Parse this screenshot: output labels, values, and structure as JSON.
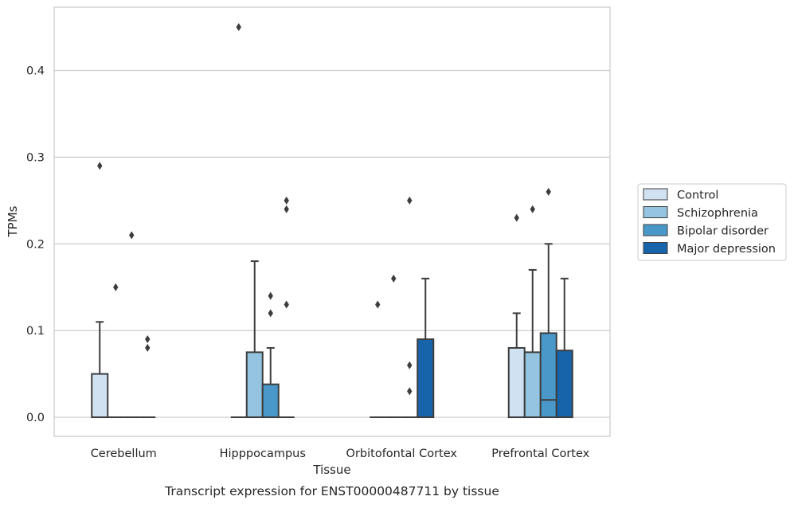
{
  "chart_data": {
    "type": "boxplot",
    "xlabel": "Tissue",
    "ylabel": "TPMs",
    "caption": "Transcript expression for ENST00000487711 by tissue",
    "ylim": [
      -0.022,
      0.473
    ],
    "yticks": [
      0.0,
      0.1,
      0.2,
      0.3,
      0.4
    ],
    "ytick_labels": [
      "0.0",
      "0.1",
      "0.2",
      "0.3",
      "0.4"
    ],
    "grid": "horizontal",
    "legend_position": "right",
    "categories": [
      "Cerebellum",
      "Hipppocampus",
      "Orbitofontal Cortex",
      "Prefrontal Cortex"
    ],
    "series": [
      {
        "name": "Control",
        "color": "#d0e1f2"
      },
      {
        "name": "Schizophrenia",
        "color": "#94c4df"
      },
      {
        "name": "Bipolar disorder",
        "color": "#4a98c9"
      },
      {
        "name": "Major depression",
        "color": "#1764ab"
      }
    ],
    "boxes": [
      [
        {
          "q1": 0,
          "median": 0,
          "q3": 0.05,
          "whislo": 0,
          "whishi": 0.11,
          "fliers": [
            0.29
          ]
        },
        {
          "q1": 0,
          "median": 0,
          "q3": 0,
          "whislo": 0,
          "whishi": 0,
          "fliers": [
            0.15
          ]
        },
        {
          "q1": 0,
          "median": 0,
          "q3": 0,
          "whislo": 0,
          "whishi": 0,
          "fliers": [
            0.21
          ]
        },
        {
          "q1": 0,
          "median": 0,
          "q3": 0,
          "whislo": 0,
          "whishi": 0,
          "fliers": [
            0.09,
            0.08
          ]
        }
      ],
      [
        {
          "q1": 0,
          "median": 0,
          "q3": 0,
          "whislo": 0,
          "whishi": 0,
          "fliers": [
            0.45
          ]
        },
        {
          "q1": 0,
          "median": 0,
          "q3": 0.075,
          "whislo": 0,
          "whishi": 0.18,
          "fliers": []
        },
        {
          "q1": 0,
          "median": 0,
          "q3": 0.038,
          "whislo": 0,
          "whishi": 0.08,
          "fliers": [
            0.14,
            0.12
          ]
        },
        {
          "q1": 0,
          "median": 0,
          "q3": 0,
          "whislo": 0,
          "whishi": 0,
          "fliers": [
            0.25,
            0.24,
            0.13
          ]
        }
      ],
      [
        {
          "q1": 0,
          "median": 0,
          "q3": 0,
          "whislo": 0,
          "whishi": 0,
          "fliers": [
            0.13
          ]
        },
        {
          "q1": 0,
          "median": 0,
          "q3": 0,
          "whislo": 0,
          "whishi": 0,
          "fliers": [
            0.16
          ]
        },
        {
          "q1": 0,
          "median": 0,
          "q3": 0,
          "whislo": 0,
          "whishi": 0,
          "fliers": [
            0.25,
            0.06,
            0.03
          ]
        },
        {
          "q1": 0,
          "median": 0,
          "q3": 0.09,
          "whislo": 0,
          "whishi": 0.16,
          "fliers": []
        }
      ],
      [
        {
          "q1": 0,
          "median": 0,
          "q3": 0.08,
          "whislo": 0,
          "whishi": 0.12,
          "fliers": [
            0.23
          ]
        },
        {
          "q1": 0,
          "median": 0,
          "q3": 0.075,
          "whislo": 0,
          "whishi": 0.17,
          "fliers": [
            0.24
          ]
        },
        {
          "q1": 0,
          "median": 0.02,
          "q3": 0.097,
          "whislo": 0,
          "whishi": 0.2,
          "fliers": [
            0.26
          ]
        },
        {
          "q1": 0,
          "median": 0,
          "q3": 0.077,
          "whislo": 0,
          "whishi": 0.16,
          "fliers": []
        }
      ]
    ]
  }
}
